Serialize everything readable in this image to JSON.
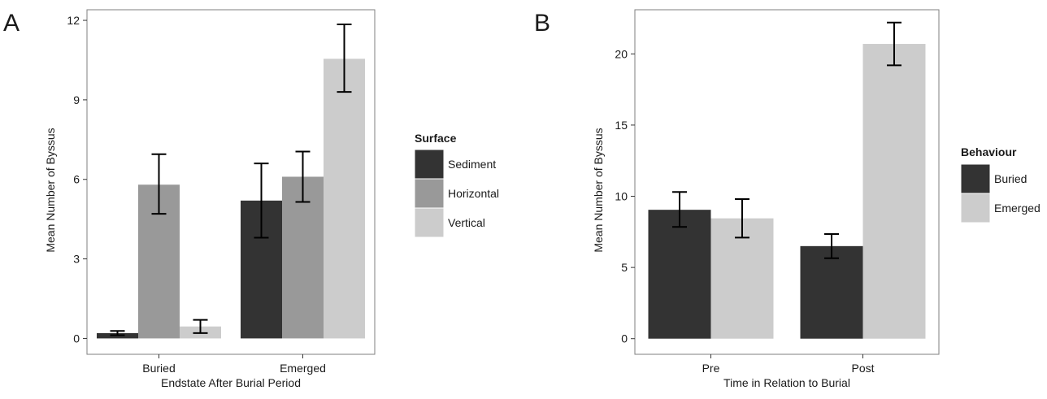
{
  "chart_data": [
    {
      "panel": "A",
      "type": "bar",
      "title": "",
      "xlabel": "Endstate After Burial Period",
      "ylabel": "Mean Number of Byssus",
      "categories": [
        "Buried",
        "Emerged"
      ],
      "series": [
        {
          "name": "Sediment",
          "values": [
            0.2,
            5.2
          ],
          "errors": [
            [
              0.12,
              0.28
            ],
            [
              3.8,
              6.6
            ]
          ],
          "color": "#333333"
        },
        {
          "name": "Horizontal",
          "values": [
            5.8,
            6.1
          ],
          "errors": [
            [
              4.7,
              6.95
            ],
            [
              5.15,
              7.05
            ]
          ],
          "color": "#999999"
        },
        {
          "name": "Vertical",
          "values": [
            0.45,
            10.55
          ],
          "errors": [
            [
              0.2,
              0.7
            ],
            [
              9.3,
              11.85
            ]
          ],
          "color": "#cccccc"
        }
      ],
      "ylim": [
        -0.6,
        12.4
      ],
      "yticks": [
        0,
        3,
        6,
        9,
        12
      ],
      "grid": false,
      "legend": {
        "title": "Surface",
        "placement": "right"
      }
    },
    {
      "panel": "B",
      "type": "bar",
      "title": "",
      "xlabel": "Time in Relation to Burial",
      "ylabel": "Mean Number of Byssus",
      "categories": [
        "Pre",
        "Post"
      ],
      "series": [
        {
          "name": "Buried",
          "values": [
            9.05,
            6.5
          ],
          "errors": [
            [
              7.85,
              10.3
            ],
            [
              5.65,
              7.35
            ]
          ],
          "color": "#333333"
        },
        {
          "name": "Emerged",
          "values": [
            8.45,
            20.7
          ],
          "errors": [
            [
              7.1,
              9.8
            ],
            [
              19.2,
              22.2
            ]
          ],
          "color": "#cccccc"
        }
      ],
      "ylim": [
        -1.1,
        23.1
      ],
      "yticks": [
        0,
        5,
        10,
        15,
        20
      ],
      "grid": false,
      "legend": {
        "title": "Behaviour",
        "placement": "right"
      }
    }
  ]
}
